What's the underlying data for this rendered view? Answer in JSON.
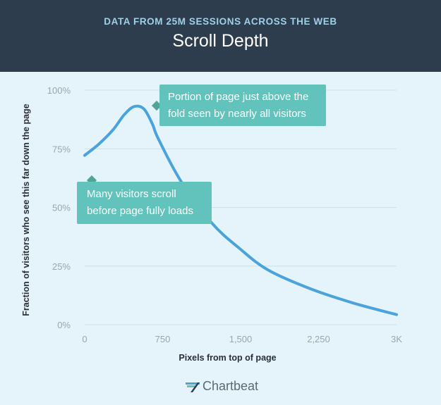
{
  "header": {
    "subtitle": "DATA FROM 25M SESSIONS ACROSS THE WEB",
    "title": "Scroll Depth"
  },
  "chart_data": {
    "type": "line",
    "title": "Scroll Depth",
    "subtitle": "DATA FROM 25M SESSIONS ACROSS THE WEB",
    "xlabel": "Pixels from top of page",
    "ylabel": "Fraction of visitors who see this far down the page",
    "xlim": [
      0,
      3000
    ],
    "ylim": [
      0,
      100
    ],
    "x_ticks": [
      0,
      750,
      1500,
      2250,
      3000
    ],
    "x_tick_labels": [
      "0",
      "750",
      "1,500",
      "2,250",
      "3K"
    ],
    "y_ticks": [
      0,
      25,
      50,
      75,
      100
    ],
    "y_tick_labels": [
      "0%",
      "25%",
      "50%",
      "75%",
      "100%"
    ],
    "grid": "horizontal",
    "series": [
      {
        "color": "#4ba3dc",
        "x": [
          0,
          136,
          271,
          380,
          475,
          570,
          652,
          706,
          923,
          1222,
          1493,
          1765,
          2172,
          2579,
          3000
        ],
        "y": [
          72.2,
          77,
          83,
          89.5,
          93,
          92,
          85.5,
          79.5,
          61.4,
          43.4,
          32.4,
          23.3,
          15.3,
          9.3,
          4.3
        ]
      }
    ],
    "annotations": [
      {
        "text": "Portion of page just above the fold seen by nearly all visitors",
        "x": 700,
        "y": 93
      },
      {
        "text": "Many visitors scroll before page fully loads",
        "x": 50,
        "y": 62
      }
    ]
  },
  "annotation_lines": {
    "a1": [
      "Portion of page just above the",
      "fold seen by nearly all visitors"
    ],
    "a2": [
      "Many visitors scroll",
      "before page fully loads"
    ]
  },
  "colors": {
    "header": "#2e3d4e",
    "background": "#e5f4fa",
    "line": "#4ba3dc",
    "annotation": "#62c3bd"
  },
  "logo": {
    "text": "Chartbeat",
    "icon": "chartbeat-logo-icon"
  }
}
